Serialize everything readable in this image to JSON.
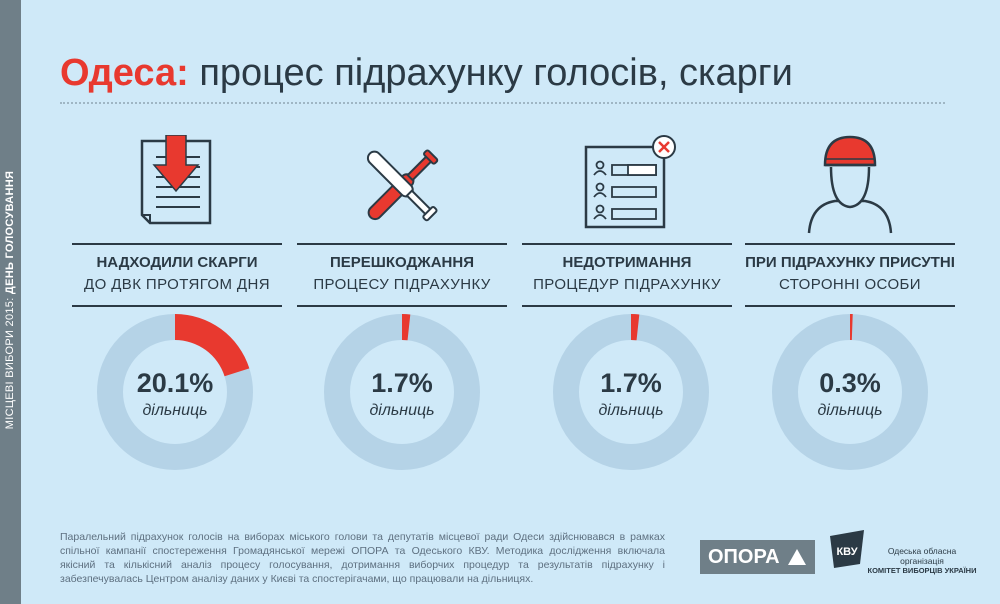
{
  "sidebar": {
    "text_regular": "МІСЦЕВІ ВИБОРИ 2015:",
    "text_bold": "ДЕНЬ ГОЛОСУВАННЯ"
  },
  "header": {
    "title_city": "Одеса:",
    "title_rest": " процес підрахунку голосів, скарги"
  },
  "colors": {
    "accent": "#e8392f",
    "ring": "#b5d3e7",
    "text": "#2b3a45",
    "background": "#cfe9f8"
  },
  "chart_data": [
    {
      "type": "pie",
      "icon": "document-arrow-icon",
      "label_line1": "НАДХОДИЛИ СКАРГИ",
      "label_line2": "ДО ДВК ПРОТЯГОМ ДНЯ",
      "value": 20.1,
      "value_text": "20.1%",
      "unit": "дільниць"
    },
    {
      "type": "pie",
      "icon": "crossed-bats-icon",
      "label_line1": "ПЕРЕШКОДЖАННЯ",
      "label_line2": "ПРОЦЕСУ ПІДРАХУНКУ",
      "value": 1.7,
      "value_text": "1.7%",
      "unit": "дільниць"
    },
    {
      "type": "pie",
      "icon": "ballot-list-x-icon",
      "label_line1": "НЕДОТРИМАННЯ",
      "label_line2": "ПРОЦЕДУР ПІДРАХУНКУ",
      "value": 1.7,
      "value_text": "1.7%",
      "unit": "дільниць"
    },
    {
      "type": "pie",
      "icon": "masked-person-icon",
      "label_line1": "ПРИ ПІДРАХУНКУ ПРИСУТНІ",
      "label_line2": "СТОРОННІ ОСОБИ",
      "value": 0.3,
      "value_text": "0.3%",
      "unit": "дільниць"
    }
  ],
  "footer": {
    "text": "Паралельний підрахунок голосів на виборах міського голови та депутатів місцевої ради Одеси здійснювався в рамках спільної кампанії спостереження Громадянської мережі ОПОРА та Одеського КВУ. Методика дослідження включала якісний та кількісний аналіз процесу голосування, дотримання виборчих процедур та результатів підрахунку і забезпечувалась Центром аналізу даних у Києві та спостерігачами, що працювали на дільницях.",
    "opora_logo": "ОПОРА",
    "kvu_line1": "Одеська обласна організація",
    "kvu_line2": "КОМІТЕТ ВИБОРЦІВ УКРАЇНИ",
    "kvu_logo_text": "КВУ"
  }
}
